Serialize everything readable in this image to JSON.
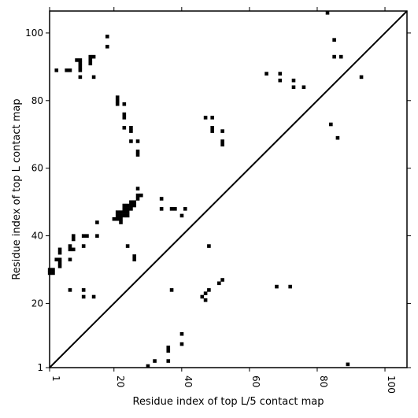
{
  "chart_data": {
    "type": "scatter",
    "xlabel": "Residue index of top L/5 contact map",
    "ylabel": "Residue index of top L contact map",
    "xlim": [
      1,
      106.5
    ],
    "ylim": [
      1,
      106.5
    ],
    "xticks": [
      1,
      20,
      40,
      60,
      80,
      100
    ],
    "yticks": [
      1,
      20,
      40,
      60,
      80,
      100
    ],
    "xtick_labels": [
      "1",
      "20",
      "40",
      "60",
      "80",
      "100"
    ],
    "ytick_labels": [
      "1",
      "20",
      "40",
      "60",
      "80",
      "100"
    ],
    "diagonal": true,
    "marker": "square",
    "color": "#000000",
    "series": [
      {
        "points": [
          [
            1,
            29
          ],
          [
            1,
            30
          ],
          [
            2,
            29
          ],
          [
            2,
            30
          ],
          [
            3,
            89
          ],
          [
            3,
            33
          ],
          [
            4,
            33
          ],
          [
            4,
            35
          ],
          [
            4,
            36
          ],
          [
            4,
            31
          ],
          [
            4,
            32
          ],
          [
            6,
            89
          ],
          [
            7,
            89
          ],
          [
            7,
            24
          ],
          [
            7,
            33
          ],
          [
            7,
            36
          ],
          [
            7,
            37
          ],
          [
            8,
            36
          ],
          [
            8,
            39
          ],
          [
            8,
            40
          ],
          [
            9,
            92
          ],
          [
            10,
            92
          ],
          [
            10,
            91
          ],
          [
            10,
            90
          ],
          [
            10,
            89
          ],
          [
            10,
            87
          ],
          [
            11,
            40
          ],
          [
            11,
            37
          ],
          [
            11,
            24
          ],
          [
            11,
            22
          ],
          [
            12,
            40
          ],
          [
            13,
            93
          ],
          [
            13,
            92
          ],
          [
            13,
            91
          ],
          [
            14,
            93
          ],
          [
            14,
            87
          ],
          [
            14,
            22
          ],
          [
            15,
            44
          ],
          [
            15,
            40
          ],
          [
            18,
            99
          ],
          [
            18,
            96
          ],
          [
            20,
            45
          ],
          [
            21,
            81
          ],
          [
            21,
            80
          ],
          [
            21,
            79
          ],
          [
            21,
            47
          ],
          [
            21,
            46
          ],
          [
            21,
            45
          ],
          [
            22,
            47
          ],
          [
            22,
            46
          ],
          [
            22,
            45
          ],
          [
            22,
            44
          ],
          [
            23,
            79
          ],
          [
            23,
            76
          ],
          [
            23,
            75
          ],
          [
            23,
            72
          ],
          [
            23,
            49
          ],
          [
            23,
            48
          ],
          [
            23,
            47
          ],
          [
            23,
            46
          ],
          [
            24,
            49
          ],
          [
            24,
            48
          ],
          [
            24,
            47
          ],
          [
            24,
            46
          ],
          [
            24,
            37
          ],
          [
            25,
            72
          ],
          [
            25,
            71
          ],
          [
            25,
            68
          ],
          [
            25,
            50
          ],
          [
            25,
            49
          ],
          [
            25,
            48
          ],
          [
            26,
            50
          ],
          [
            26,
            49
          ],
          [
            26,
            34
          ],
          [
            26,
            33
          ],
          [
            27,
            68
          ],
          [
            27,
            65
          ],
          [
            27,
            64
          ],
          [
            27,
            54
          ],
          [
            27,
            52
          ],
          [
            27,
            51
          ],
          [
            28,
            52
          ],
          [
            30,
            1.5
          ],
          [
            32,
            3
          ],
          [
            34,
            51
          ],
          [
            34,
            48
          ],
          [
            36,
            7
          ],
          [
            36,
            6
          ],
          [
            36,
            3
          ],
          [
            37,
            48
          ],
          [
            37,
            24
          ],
          [
            38,
            48
          ],
          [
            40,
            46
          ],
          [
            40,
            11
          ],
          [
            40,
            8
          ],
          [
            41,
            48
          ],
          [
            46,
            22
          ],
          [
            47,
            75
          ],
          [
            47,
            23
          ],
          [
            47,
            21
          ],
          [
            48,
            37
          ],
          [
            48,
            24
          ],
          [
            49,
            75
          ],
          [
            49,
            72
          ],
          [
            49,
            71
          ],
          [
            51,
            26
          ],
          [
            52,
            71
          ],
          [
            52,
            68
          ],
          [
            52,
            67
          ],
          [
            52,
            27
          ],
          [
            65,
            88
          ],
          [
            68,
            25
          ],
          [
            69,
            88
          ],
          [
            69,
            86
          ],
          [
            72,
            25
          ],
          [
            73,
            86
          ],
          [
            73,
            84
          ],
          [
            76,
            84
          ],
          [
            83,
            106
          ],
          [
            84,
            73
          ],
          [
            85,
            98
          ],
          [
            85,
            93
          ],
          [
            86,
            69
          ],
          [
            87,
            93
          ],
          [
            89,
            2
          ],
          [
            93,
            87
          ]
        ]
      }
    ]
  }
}
